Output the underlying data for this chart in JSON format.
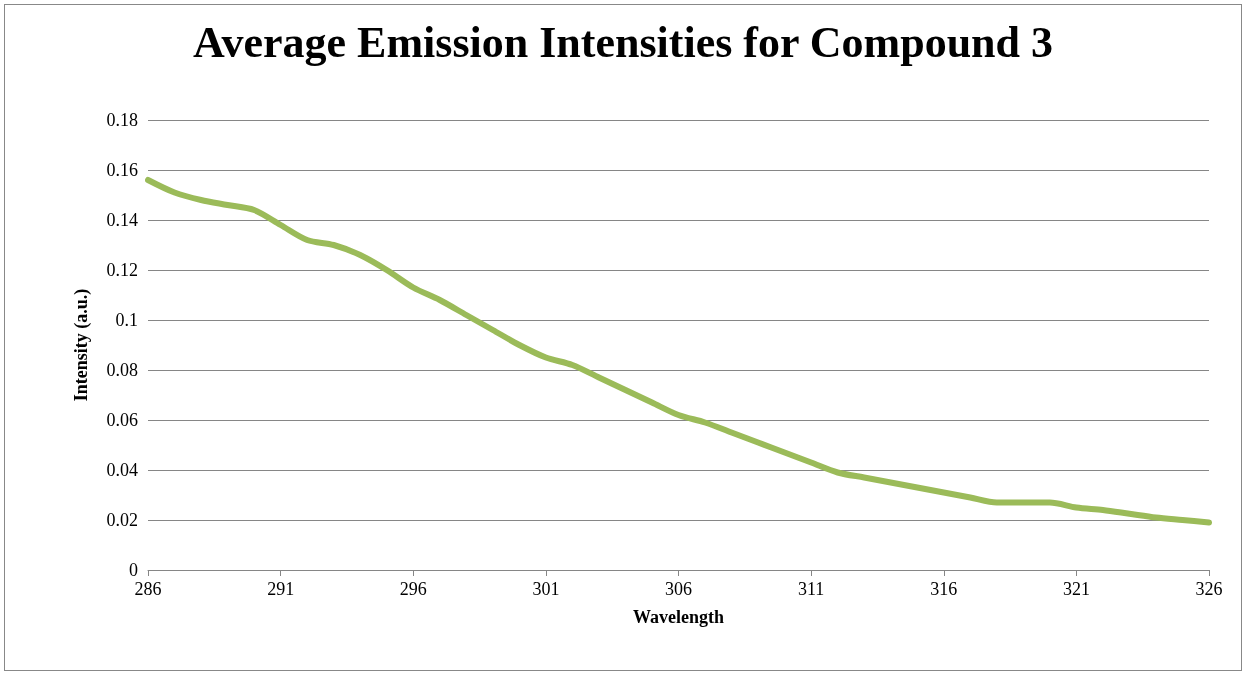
{
  "chart_data": {
    "type": "line",
    "title": "Average Emission Intensities for Compound 3",
    "xlabel": "Wavelength",
    "ylabel": "Intensity (a.u.)",
    "x": [
      286,
      287,
      288,
      289,
      290,
      291,
      292,
      293,
      294,
      295,
      296,
      297,
      298,
      299,
      300,
      301,
      302,
      303,
      304,
      305,
      306,
      307,
      308,
      309,
      310,
      311,
      312,
      313,
      314,
      315,
      316,
      317,
      318,
      319,
      320,
      321,
      322,
      323,
      324,
      325,
      326
    ],
    "series": [
      {
        "color": "#9bbb59",
        "values": [
          0.156,
          0.151,
          0.148,
          0.146,
          0.144,
          0.138,
          0.132,
          0.13,
          0.126,
          0.12,
          0.113,
          0.108,
          0.102,
          0.096,
          0.09,
          0.085,
          0.082,
          0.077,
          0.072,
          0.067,
          0.062,
          0.059,
          0.055,
          0.051,
          0.047,
          0.043,
          0.039,
          0.037,
          0.035,
          0.033,
          0.031,
          0.029,
          0.027,
          0.027,
          0.027,
          0.025,
          0.024,
          0.0225,
          0.021,
          0.02,
          0.019
        ]
      }
    ],
    "xlim": [
      286,
      326
    ],
    "xticks": [
      286,
      291,
      296,
      301,
      306,
      311,
      316,
      321,
      326
    ],
    "ylim": [
      0,
      0.18
    ],
    "yticks": [
      0,
      0.02,
      0.04,
      0.06,
      0.08,
      0.1,
      0.12,
      0.14,
      0.16,
      0.18
    ],
    "grid": "y",
    "marker": "none",
    "line_style": "solid"
  }
}
